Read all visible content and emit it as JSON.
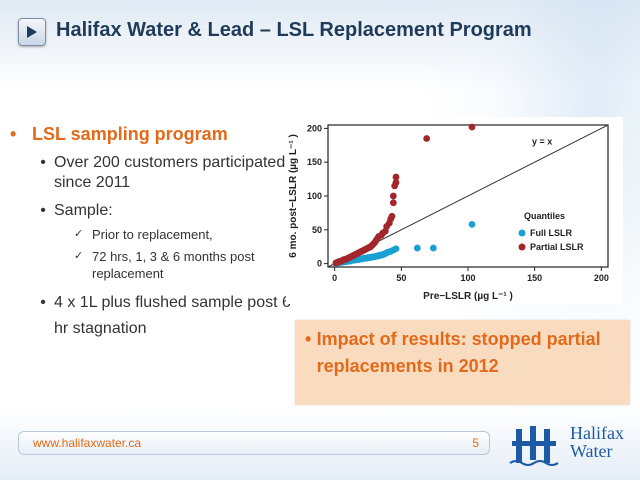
{
  "header": {
    "title": "Halifax Water & Lead – LSL Replacement Program",
    "nav_icon": "play-triangle-icon"
  },
  "bullets": {
    "main": "LSL sampling program",
    "items": [
      "Over 200 customers participated since 2011",
      "Sample:",
      "4 x 1L plus flushed sample post 6 hr stagnation"
    ],
    "sub_items": [
      "Prior to replacement,",
      " 72 hrs, 1, 3 & 6 months post replacement"
    ]
  },
  "callout": {
    "text": "Impact of results: stopped partial replacements in 2012"
  },
  "footer": {
    "url": "www.halifaxwater.ca",
    "page": "5"
  },
  "logo": {
    "line1": "Halifax",
    "line2": "Water"
  },
  "colors": {
    "accent_orange": "#e26a1a",
    "title_navy": "#1f3b5a",
    "full_lslr": "#1aa0d2",
    "partial_lslr": "#a3262a",
    "callout_bg": "#f9dcc0",
    "logo_blue": "#1c5aa6"
  },
  "chart_data": {
    "type": "scatter",
    "xlabel": "Pre−LSLR (µg L⁻¹ )",
    "ylabel": "6 mo. post−LSLR (µg L⁻¹ )",
    "xlim": [
      -5,
      205
    ],
    "ylim": [
      -5,
      205
    ],
    "xticks": [
      0,
      50,
      100,
      150,
      200
    ],
    "yticks": [
      0,
      50,
      100,
      150,
      200
    ],
    "reference_line": {
      "label": "y = x"
    },
    "legend": {
      "title": "Quantiles",
      "placement": "bottom-right"
    },
    "series": [
      {
        "name": "Full LSLR",
        "color": "#1aa0d2",
        "points": [
          [
            1,
            0
          ],
          [
            2,
            1
          ],
          [
            3,
            1
          ],
          [
            4,
            2
          ],
          [
            5,
            2
          ],
          [
            6,
            2
          ],
          [
            7,
            3
          ],
          [
            8,
            3
          ],
          [
            9,
            3
          ],
          [
            10,
            4
          ],
          [
            11,
            4
          ],
          [
            12,
            4
          ],
          [
            13,
            5
          ],
          [
            14,
            5
          ],
          [
            15,
            5
          ],
          [
            16,
            6
          ],
          [
            17,
            6
          ],
          [
            18,
            6
          ],
          [
            19,
            7
          ],
          [
            20,
            7
          ],
          [
            21,
            7
          ],
          [
            22,
            8
          ],
          [
            23,
            8
          ],
          [
            24,
            8
          ],
          [
            25,
            9
          ],
          [
            26,
            9
          ],
          [
            27,
            9
          ],
          [
            28,
            10
          ],
          [
            29,
            10
          ],
          [
            30,
            10
          ],
          [
            31,
            11
          ],
          [
            32,
            11
          ],
          [
            33,
            12
          ],
          [
            34,
            12
          ],
          [
            35,
            13
          ],
          [
            36,
            13
          ],
          [
            37,
            14
          ],
          [
            38,
            15
          ],
          [
            39,
            16
          ],
          [
            40,
            17
          ],
          [
            42,
            18
          ],
          [
            44,
            20
          ],
          [
            46,
            22
          ],
          [
            62,
            23
          ],
          [
            74,
            23
          ],
          [
            103,
            58
          ]
        ]
      },
      {
        "name": "Partial LSLR",
        "color": "#a3262a",
        "points": [
          [
            1,
            1
          ],
          [
            2,
            2
          ],
          [
            3,
            3
          ],
          [
            4,
            3
          ],
          [
            5,
            4
          ],
          [
            6,
            5
          ],
          [
            7,
            6
          ],
          [
            8,
            6
          ],
          [
            9,
            7
          ],
          [
            10,
            8
          ],
          [
            11,
            9
          ],
          [
            12,
            10
          ],
          [
            13,
            11
          ],
          [
            14,
            12
          ],
          [
            15,
            13
          ],
          [
            16,
            14
          ],
          [
            17,
            15
          ],
          [
            18,
            16
          ],
          [
            19,
            17
          ],
          [
            20,
            18
          ],
          [
            21,
            19
          ],
          [
            22,
            20
          ],
          [
            23,
            21
          ],
          [
            24,
            22
          ],
          [
            25,
            23
          ],
          [
            26,
            24
          ],
          [
            27,
            25
          ],
          [
            28,
            27
          ],
          [
            29,
            29
          ],
          [
            30,
            31
          ],
          [
            31,
            34
          ],
          [
            32,
            37
          ],
          [
            33,
            40
          ],
          [
            35,
            42
          ],
          [
            36,
            45
          ],
          [
            38,
            48
          ],
          [
            39,
            55
          ],
          [
            41,
            60
          ],
          [
            42,
            66
          ],
          [
            43,
            70
          ],
          [
            44,
            90
          ],
          [
            44,
            100
          ],
          [
            45,
            115
          ],
          [
            46,
            120
          ],
          [
            46,
            128
          ],
          [
            69,
            185
          ],
          [
            103,
            202
          ]
        ]
      }
    ]
  }
}
